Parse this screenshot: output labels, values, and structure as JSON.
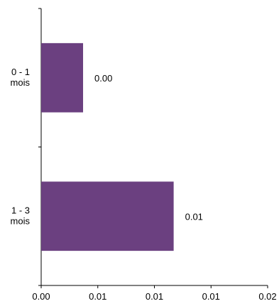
{
  "chart_data": {
    "type": "bar",
    "orientation": "horizontal",
    "title": "",
    "xlabel": "",
    "ylabel": "",
    "categories": [
      {
        "line1": "0 - 1",
        "line2": "mois"
      },
      {
        "line1": "1 - 3",
        "line2": "mois"
      }
    ],
    "values": [
      0.0037,
      0.0117
    ],
    "data_labels": [
      "0.00",
      "0.01"
    ],
    "xlim": [
      0,
      0.02
    ],
    "x_ticks": [
      {
        "value": 0,
        "label": "0.00"
      },
      {
        "value": 0.005,
        "label": "0.01"
      },
      {
        "value": 0.01,
        "label": "0.01"
      },
      {
        "value": 0.015,
        "label": "0.01"
      },
      {
        "value": 0.02,
        "label": "0.02"
      }
    ],
    "grid": false,
    "legend": "none",
    "bar_color": "#6b4080"
  }
}
